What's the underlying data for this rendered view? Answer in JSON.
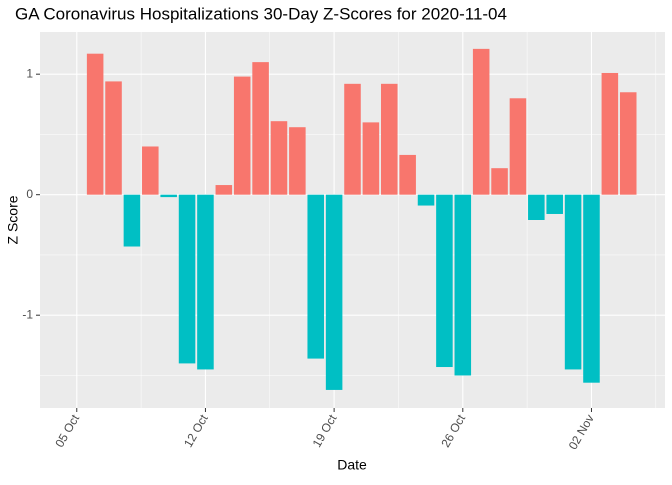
{
  "chart_data": {
    "type": "bar",
    "title": "GA Coronavirus Hospitalizations 30-Day Z-Scores for 2020-11-04",
    "x_label": "Date",
    "y_label": "Z Score",
    "x": [
      "10-06",
      "10-07",
      "10-08",
      "10-09",
      "10-10",
      "10-11",
      "10-12",
      "10-13",
      "10-14",
      "10-15",
      "10-16",
      "10-17",
      "10-18",
      "10-19",
      "10-20",
      "10-21",
      "10-22",
      "10-23",
      "10-24",
      "10-25",
      "10-26",
      "10-27",
      "10-28",
      "10-29",
      "10-30",
      "10-31",
      "11-01",
      "11-02",
      "11-03",
      "11-04"
    ],
    "values": [
      1.17,
      0.94,
      -0.43,
      0.4,
      -0.02,
      -1.4,
      -1.45,
      0.08,
      0.98,
      1.1,
      0.61,
      0.56,
      -1.36,
      -1.62,
      0.92,
      0.6,
      0.92,
      0.33,
      -0.09,
      -1.43,
      -1.5,
      1.21,
      0.22,
      0.8,
      -0.21,
      -0.16,
      -1.45,
      -1.56,
      1.01,
      0.85
    ],
    "positive_color": "#F8766D",
    "negative_color": "#00BFC4",
    "xlim": [
      "10-03",
      "11-06"
    ],
    "xticks": [
      {
        "value": "10-05",
        "label": "05 Oct"
      },
      {
        "value": "10-12",
        "label": "12 Oct"
      },
      {
        "value": "10-19",
        "label": "19 Oct"
      },
      {
        "value": "10-26",
        "label": "26 Oct"
      },
      {
        "value": "11-02",
        "label": "02 Nov"
      }
    ],
    "ylim": [
      -1.77,
      1.35
    ],
    "yticks": [
      -1,
      0,
      1
    ],
    "grid": true
  }
}
